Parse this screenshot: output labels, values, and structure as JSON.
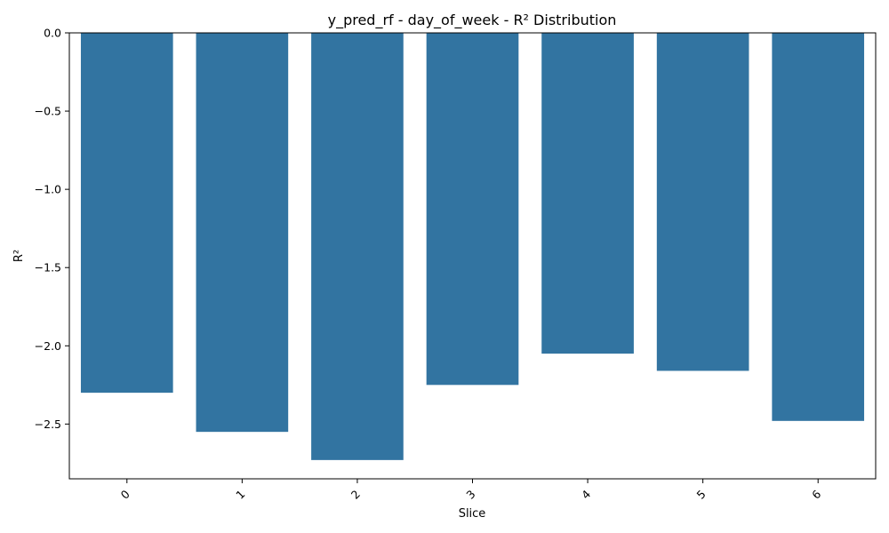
{
  "chart_data": {
    "type": "bar",
    "title": "y_pred_rf - day_of_week - R² Distribution",
    "xlabel": "Slice",
    "ylabel": "R²",
    "categories": [
      "0",
      "1",
      "2",
      "3",
      "4",
      "5",
      "6"
    ],
    "values": [
      -2.3,
      -2.55,
      -2.73,
      -2.25,
      -2.05,
      -2.16,
      -2.48
    ],
    "ylim": [
      -2.85,
      0.0
    ],
    "yticks": [
      0.0,
      -0.5,
      -1.0,
      -1.5,
      -2.0,
      -2.5
    ],
    "ytick_labels": [
      "0.0",
      "−0.5",
      "−1.0",
      "−1.5",
      "−2.0",
      "−2.5"
    ],
    "bar_color": "#3274a1",
    "xtick_rotation": 45,
    "grid": false,
    "legend": "none"
  }
}
